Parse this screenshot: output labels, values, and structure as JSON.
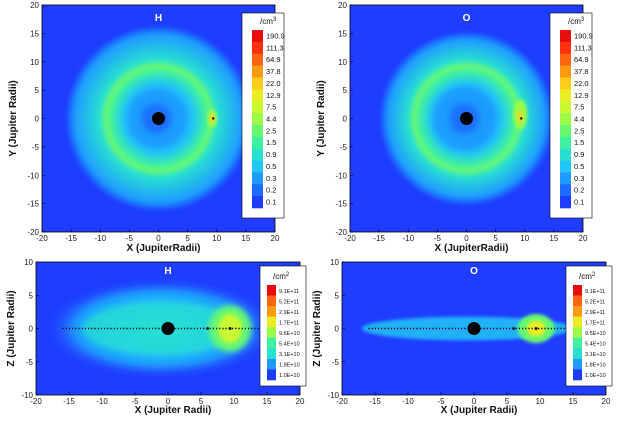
{
  "chart_data": [
    {
      "type": "heatmap",
      "title": "H",
      "plane": "xy",
      "xlabel": "X (JupiterRadii)",
      "ylabel": "Y (Jupiter Radii)",
      "xlim": [
        -20,
        20
      ],
      "ylim": [
        -20,
        20
      ],
      "xticks": [
        "-20",
        "-15",
        "-10",
        "-5",
        "0",
        "5",
        "10",
        "15",
        "20"
      ],
      "yticks": [
        "-20",
        "-15",
        "-10",
        "-5",
        "0",
        "5",
        "10",
        "15",
        "20"
      ],
      "colorbar": {
        "unit_base": "/cm",
        "unit_exp": "3",
        "labels": [
          "190.9",
          "111.3",
          "64.9",
          "37.8",
          "22.0",
          "12.9",
          "7.5",
          "4.4",
          "2.5",
          "1.5",
          "0.9",
          "0.5",
          "0.3",
          "0.2",
          "0.1"
        ]
      },
      "torus": {
        "inner_radius": 6,
        "outer_radius": 13,
        "peak_radius": 9
      },
      "jupiter": {
        "x": 0,
        "y": 0
      },
      "moon": {
        "x": 9.4,
        "y": 0
      }
    },
    {
      "type": "heatmap",
      "title": "O",
      "plane": "xy",
      "xlabel": "X (JupiterRadii)",
      "ylabel": "Y (Jupiter Radii)",
      "xlim": [
        -20,
        20
      ],
      "ylim": [
        -20,
        20
      ],
      "xticks": [
        "-20",
        "-15",
        "-10",
        "-5",
        "0",
        "5",
        "10",
        "15",
        "20"
      ],
      "yticks": [
        "-20",
        "-15",
        "-10",
        "-5",
        "0",
        "5",
        "10",
        "15",
        "20"
      ],
      "colorbar": {
        "unit_base": "/cm",
        "unit_exp": "3",
        "labels": [
          "190.9",
          "111.3",
          "64.9",
          "37.8",
          "22.0",
          "12.9",
          "7.5",
          "4.4",
          "2.5",
          "1.5",
          "0.9",
          "0.5",
          "0.3",
          "0.2",
          "0.1"
        ]
      },
      "torus": {
        "inner_radius": 6,
        "outer_radius": 12,
        "peak_radius": 9
      },
      "jupiter": {
        "x": 0,
        "y": 0
      },
      "moon": {
        "x": 9.4,
        "y": 0
      }
    },
    {
      "type": "heatmap",
      "title": "H",
      "plane": "xz",
      "xlabel": "X (Jupiter Radii)",
      "ylabel": "Z (Jupiter Radii)",
      "xlim": [
        -20,
        20
      ],
      "ylim": [
        -10,
        10
      ],
      "xticks": [
        "-20",
        "-15",
        "-10",
        "-5",
        "0",
        "5",
        "10",
        "15",
        "20"
      ],
      "yticks": [
        "-10",
        "-5",
        "0",
        "5",
        "10"
      ],
      "colorbar": {
        "unit_base": "/cm",
        "unit_exp": "2",
        "labels": [
          "9.1E+11",
          "5.2E+11",
          "2.9E+11",
          "1.7E+11",
          "9.5E+10",
          "5.4E+10",
          "3.1E+10",
          "1.8E+10",
          "1.0E+10"
        ]
      },
      "jupiter": {
        "x": 0,
        "z": 0
      },
      "moon": {
        "x": 9.4,
        "z": 0
      }
    },
    {
      "type": "heatmap",
      "title": "O",
      "plane": "xz",
      "xlabel": "X (Jupiter Radii)",
      "ylabel": "Z (Jupiter Radii)",
      "xlim": [
        -20,
        20
      ],
      "ylim": [
        -10,
        10
      ],
      "xticks": [
        "-20",
        "-15",
        "-10",
        "-5",
        "0",
        "5",
        "10",
        "15",
        "20"
      ],
      "yticks": [
        "-10",
        "-5",
        "0",
        "5",
        "10"
      ],
      "colorbar": {
        "unit_base": "/cm",
        "unit_exp": "2",
        "labels": [
          "9.1E+11",
          "5.2E+11",
          "2.9E+11",
          "1.7E+11",
          "9.5E+10",
          "5.4E+10",
          "3.1E+10",
          "1.8E+10",
          "1.0E+10"
        ]
      },
      "jupiter": {
        "x": 0,
        "z": 0
      },
      "moon": {
        "x": 9.4,
        "z": 0
      }
    }
  ],
  "colormap": [
    "#1f3dff",
    "#1e6cff",
    "#1f9bff",
    "#20c6f5",
    "#28e0d0",
    "#3ff0a0",
    "#68f870",
    "#9cfa48",
    "#c8f830",
    "#ecec22",
    "#ffcc1a",
    "#ff9a12",
    "#ff6410",
    "#ff3010",
    "#e80c0c"
  ],
  "background_color": "#1f3dff"
}
